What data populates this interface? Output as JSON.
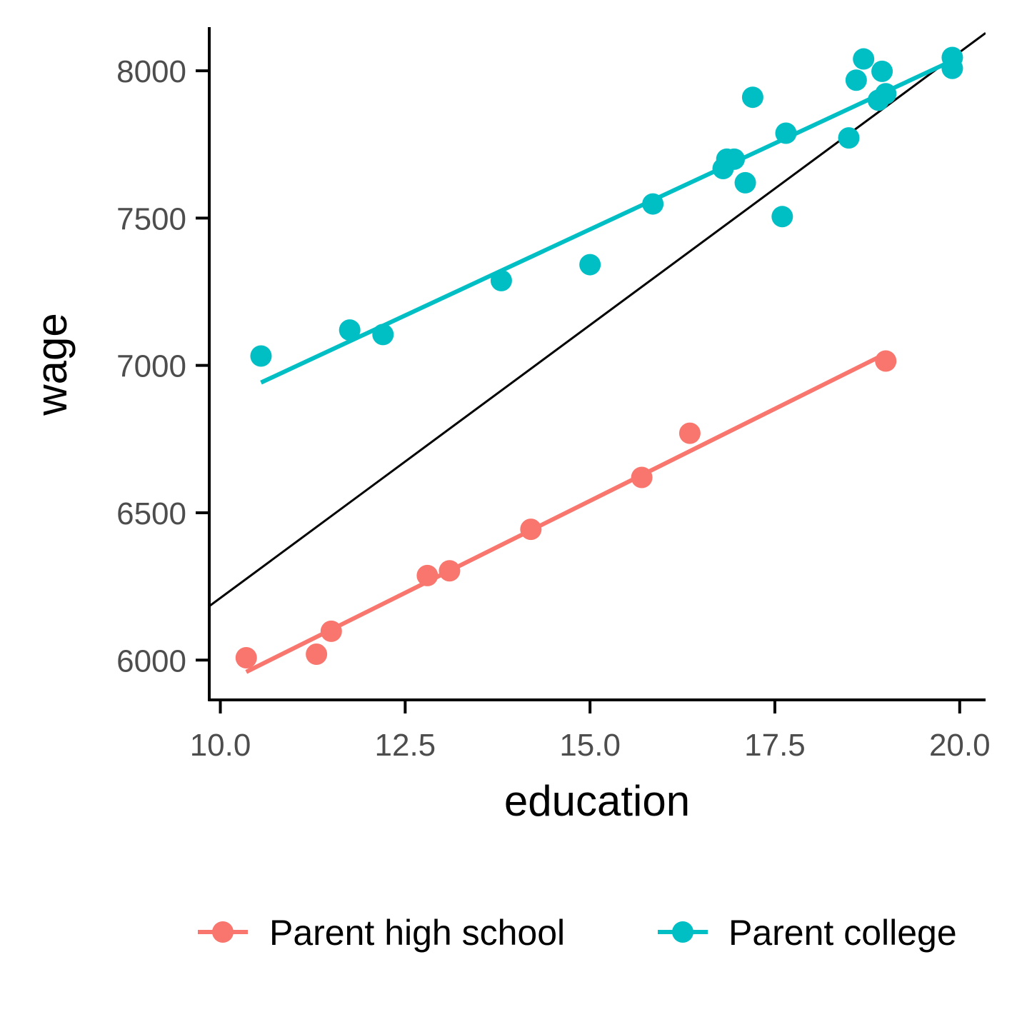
{
  "chart_data": {
    "type": "scatter",
    "xlabel": "education",
    "ylabel": "wage",
    "xlim": [
      9.85,
      20.35
    ],
    "ylim": [
      5865,
      8148
    ],
    "x_ticks": [
      10.0,
      12.5,
      15.0,
      17.5,
      20.0
    ],
    "x_tick_labels": [
      "10.0",
      "12.5",
      "15.0",
      "17.5",
      "20.0"
    ],
    "y_ticks": [
      6000,
      6500,
      7000,
      7500,
      8000
    ],
    "y_tick_labels": [
      "6000",
      "6500",
      "7000",
      "7500",
      "8000"
    ],
    "grid": false,
    "legend_position": "bottom",
    "series": [
      {
        "name": "Parent high school",
        "color": "#F8766D",
        "points": [
          {
            "x": 10.35,
            "y": 6008
          },
          {
            "x": 11.3,
            "y": 6020
          },
          {
            "x": 11.5,
            "y": 6098
          },
          {
            "x": 12.8,
            "y": 6287
          },
          {
            "x": 13.1,
            "y": 6303
          },
          {
            "x": 14.2,
            "y": 6444
          },
          {
            "x": 15.7,
            "y": 6620
          },
          {
            "x": 16.35,
            "y": 6770
          },
          {
            "x": 19.0,
            "y": 7015
          }
        ],
        "fit": {
          "x": [
            10.35,
            19.0
          ],
          "y": [
            5960,
            7040
          ]
        }
      },
      {
        "name": "Parent college",
        "color": "#00BFC4",
        "points": [
          {
            "x": 10.55,
            "y": 7032
          },
          {
            "x": 11.75,
            "y": 7120
          },
          {
            "x": 12.2,
            "y": 7105
          },
          {
            "x": 13.8,
            "y": 7288
          },
          {
            "x": 15.0,
            "y": 7342
          },
          {
            "x": 15.85,
            "y": 7548
          },
          {
            "x": 16.8,
            "y": 7668
          },
          {
            "x": 16.85,
            "y": 7700
          },
          {
            "x": 16.95,
            "y": 7700
          },
          {
            "x": 17.1,
            "y": 7620
          },
          {
            "x": 17.2,
            "y": 7910
          },
          {
            "x": 17.6,
            "y": 7505
          },
          {
            "x": 17.65,
            "y": 7788
          },
          {
            "x": 18.5,
            "y": 7772
          },
          {
            "x": 18.6,
            "y": 7968
          },
          {
            "x": 18.7,
            "y": 8040
          },
          {
            "x": 18.9,
            "y": 7900
          },
          {
            "x": 18.95,
            "y": 7998
          },
          {
            "x": 19.0,
            "y": 7922
          },
          {
            "x": 19.9,
            "y": 8045
          },
          {
            "x": 19.9,
            "y": 8008
          }
        ],
        "fit": {
          "x": [
            10.55,
            19.95
          ],
          "y": [
            6942,
            8040
          ]
        }
      }
    ],
    "overall_line": {
      "color": "#000000",
      "x": [
        9.85,
        20.35
      ],
      "y": [
        6183,
        8128
      ]
    }
  }
}
